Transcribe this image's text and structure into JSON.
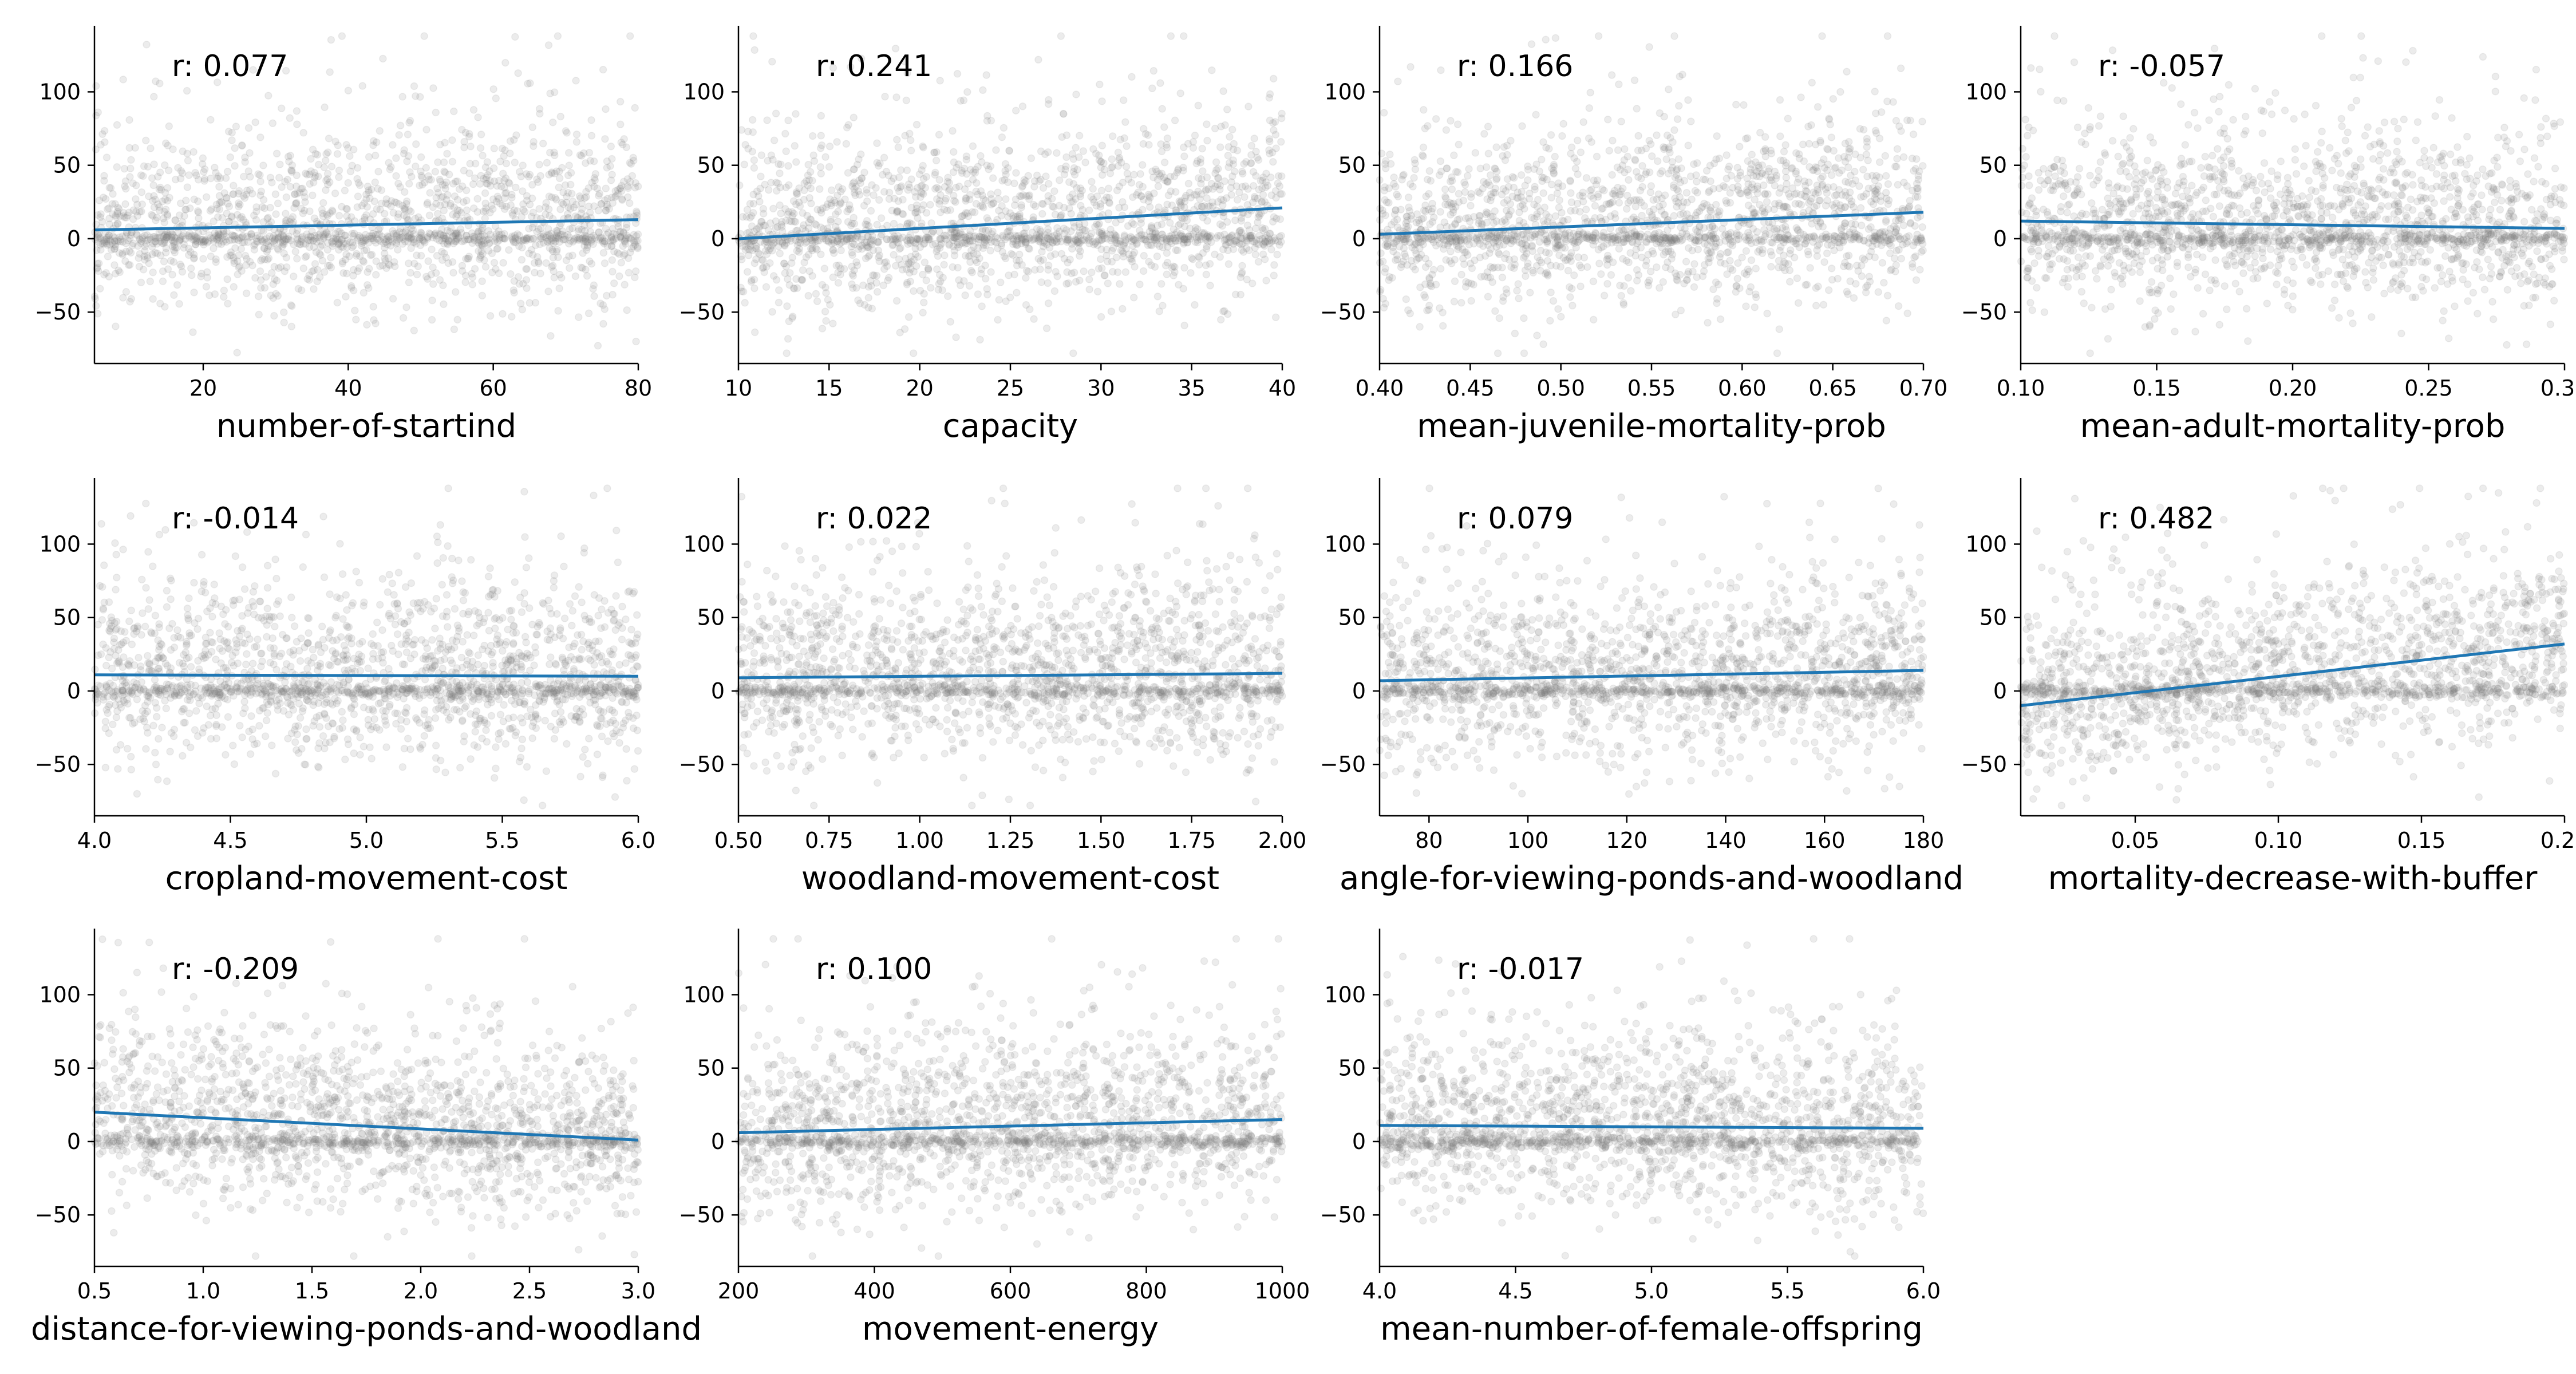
{
  "figure": {
    "colors": {
      "points": "#808080",
      "fit_line": "#1f77b4",
      "axes": "#000000",
      "text": "#000000"
    }
  },
  "chart_data": [
    {
      "type": "scatter",
      "xlabel": "number-of-startind",
      "ylabel": "",
      "r_label": "r:  0.077",
      "xlim": [
        5,
        80
      ],
      "ylim": [
        -85,
        145
      ],
      "xticks": [
        20,
        40,
        60,
        80
      ],
      "xtick_labels": [
        "20",
        "40",
        "60",
        "80"
      ],
      "yticks": [
        -50,
        0,
        50,
        100
      ],
      "ytick_labels": [
        "−50",
        "0",
        "50",
        "100"
      ],
      "fit_line": {
        "x": [
          5,
          80
        ],
        "y": [
          6,
          13
        ]
      },
      "point_cloud": {
        "count": 2000,
        "y_center": 10,
        "y_spread": 28,
        "marker": "circle",
        "alpha": 0.15
      },
      "spines": "left-bottom",
      "grid": false
    },
    {
      "type": "scatter",
      "xlabel": "capacity",
      "ylabel": "",
      "r_label": "r:  0.241",
      "xlim": [
        10,
        40
      ],
      "ylim": [
        -85,
        145
      ],
      "xticks": [
        10,
        15,
        20,
        25,
        30,
        35,
        40
      ],
      "xtick_labels": [
        "10",
        "15",
        "20",
        "25",
        "30",
        "35",
        "40"
      ],
      "yticks": [
        -50,
        0,
        50,
        100
      ],
      "ytick_labels": [
        "−50",
        "0",
        "50",
        "100"
      ],
      "fit_line": {
        "x": [
          10,
          40
        ],
        "y": [
          0,
          21
        ]
      },
      "point_cloud": {
        "count": 2000,
        "y_center": 10,
        "y_spread": 28,
        "marker": "circle",
        "alpha": 0.15
      },
      "spines": "left-bottom",
      "grid": false
    },
    {
      "type": "scatter",
      "xlabel": "mean-juvenile-mortality-prob",
      "ylabel": "",
      "r_label": "r:  0.166",
      "xlim": [
        0.4,
        0.7
      ],
      "ylim": [
        -85,
        145
      ],
      "xticks": [
        0.4,
        0.45,
        0.5,
        0.55,
        0.6,
        0.65,
        0.7
      ],
      "xtick_labels": [
        "0.40",
        "0.45",
        "0.50",
        "0.55",
        "0.60",
        "0.65",
        "0.70"
      ],
      "yticks": [
        -50,
        0,
        50,
        100
      ],
      "ytick_labels": [
        "−50",
        "0",
        "50",
        "100"
      ],
      "fit_line": {
        "x": [
          0.4,
          0.7
        ],
        "y": [
          3,
          18
        ]
      },
      "point_cloud": {
        "count": 2000,
        "y_center": 10,
        "y_spread": 28,
        "marker": "circle",
        "alpha": 0.15
      },
      "spines": "left-bottom",
      "grid": false
    },
    {
      "type": "scatter",
      "xlabel": "mean-adult-mortality-prob",
      "ylabel": "",
      "r_label": "r: -0.057",
      "xlim": [
        0.1,
        0.3
      ],
      "ylim": [
        -85,
        145
      ],
      "xticks": [
        0.1,
        0.15,
        0.2,
        0.25,
        0.3
      ],
      "xtick_labels": [
        "0.10",
        "0.15",
        "0.20",
        "0.25",
        "0.30"
      ],
      "yticks": [
        -50,
        0,
        50,
        100
      ],
      "ytick_labels": [
        "−50",
        "0",
        "50",
        "100"
      ],
      "fit_line": {
        "x": [
          0.1,
          0.3
        ],
        "y": [
          12,
          7
        ]
      },
      "point_cloud": {
        "count": 2000,
        "y_center": 10,
        "y_spread": 28,
        "marker": "circle",
        "alpha": 0.15
      },
      "spines": "left-bottom",
      "grid": false
    },
    {
      "type": "scatter",
      "xlabel": "cropland-movement-cost",
      "ylabel": "",
      "r_label": "r: -0.014",
      "xlim": [
        4,
        6
      ],
      "ylim": [
        -85,
        145
      ],
      "xticks": [
        4,
        4.5,
        5,
        5.5,
        6
      ],
      "xtick_labels": [
        "4.0",
        "4.5",
        "5.0",
        "5.5",
        "6.0"
      ],
      "yticks": [
        -50,
        0,
        50,
        100
      ],
      "ytick_labels": [
        "−50",
        "0",
        "50",
        "100"
      ],
      "fit_line": {
        "x": [
          4,
          6
        ],
        "y": [
          11,
          10
        ]
      },
      "point_cloud": {
        "count": 2000,
        "y_center": 10,
        "y_spread": 28,
        "marker": "circle",
        "alpha": 0.15
      },
      "spines": "left-bottom",
      "grid": false
    },
    {
      "type": "scatter",
      "xlabel": "woodland-movement-cost",
      "ylabel": "",
      "r_label": "r:  0.022",
      "xlim": [
        0.5,
        2
      ],
      "ylim": [
        -85,
        145
      ],
      "xticks": [
        0.5,
        0.75,
        1,
        1.25,
        1.5,
        1.75,
        2
      ],
      "xtick_labels": [
        "0.50",
        "0.75",
        "1.00",
        "1.25",
        "1.50",
        "1.75",
        "2.00"
      ],
      "yticks": [
        -50,
        0,
        50,
        100
      ],
      "ytick_labels": [
        "−50",
        "0",
        "50",
        "100"
      ],
      "fit_line": {
        "x": [
          0.5,
          2
        ],
        "y": [
          9,
          12
        ]
      },
      "point_cloud": {
        "count": 2000,
        "y_center": 10,
        "y_spread": 28,
        "marker": "circle",
        "alpha": 0.15
      },
      "spines": "left-bottom",
      "grid": false
    },
    {
      "type": "scatter",
      "xlabel": "angle-for-viewing-ponds-and-woodland",
      "ylabel": "",
      "r_label": "r:  0.079",
      "xlim": [
        70,
        180
      ],
      "ylim": [
        -85,
        145
      ],
      "xticks": [
        80,
        100,
        120,
        140,
        160,
        180
      ],
      "xtick_labels": [
        "80",
        "100",
        "120",
        "140",
        "160",
        "180"
      ],
      "yticks": [
        -50,
        0,
        50,
        100
      ],
      "ytick_labels": [
        "−50",
        "0",
        "50",
        "100"
      ],
      "fit_line": {
        "x": [
          70,
          180
        ],
        "y": [
          7,
          14
        ]
      },
      "point_cloud": {
        "count": 2000,
        "y_center": 10,
        "y_spread": 28,
        "marker": "circle",
        "alpha": 0.15
      },
      "spines": "left-bottom",
      "grid": false
    },
    {
      "type": "scatter",
      "xlabel": "mortality-decrease-with-buffer",
      "ylabel": "",
      "r_label": "r:  0.482",
      "xlim": [
        0.01,
        0.2
      ],
      "ylim": [
        -85,
        145
      ],
      "xticks": [
        0.05,
        0.1,
        0.15,
        0.2
      ],
      "xtick_labels": [
        "0.05",
        "0.10",
        "0.15",
        "0.20"
      ],
      "yticks": [
        -50,
        0,
        50,
        100
      ],
      "ytick_labels": [
        "−50",
        "0",
        "50",
        "100"
      ],
      "fit_line": {
        "x": [
          0.01,
          0.2
        ],
        "y": [
          -10,
          32
        ]
      },
      "point_cloud": {
        "count": 2000,
        "y_center": 10,
        "y_spread": 28,
        "marker": "circle",
        "alpha": 0.15
      },
      "spines": "left-bottom",
      "grid": false
    },
    {
      "type": "scatter",
      "xlabel": "distance-for-viewing-ponds-and-woodland",
      "ylabel": "",
      "r_label": "r: -0.209",
      "xlim": [
        0.5,
        3
      ],
      "ylim": [
        -85,
        145
      ],
      "xticks": [
        0.5,
        1,
        1.5,
        2,
        2.5,
        3
      ],
      "xtick_labels": [
        "0.5",
        "1.0",
        "1.5",
        "2.0",
        "2.5",
        "3.0"
      ],
      "yticks": [
        -50,
        0,
        50,
        100
      ],
      "ytick_labels": [
        "−50",
        "0",
        "50",
        "100"
      ],
      "fit_line": {
        "x": [
          0.5,
          3
        ],
        "y": [
          20,
          1
        ]
      },
      "point_cloud": {
        "count": 2000,
        "y_center": 10,
        "y_spread": 28,
        "marker": "circle",
        "alpha": 0.15
      },
      "spines": "left-bottom",
      "grid": false
    },
    {
      "type": "scatter",
      "xlabel": "movement-energy",
      "ylabel": "",
      "r_label": "r:  0.100",
      "xlim": [
        200,
        1000
      ],
      "ylim": [
        -85,
        145
      ],
      "xticks": [
        200,
        400,
        600,
        800,
        1000
      ],
      "xtick_labels": [
        "200",
        "400",
        "600",
        "800",
        "1000"
      ],
      "yticks": [
        -50,
        0,
        50,
        100
      ],
      "ytick_labels": [
        "−50",
        "0",
        "50",
        "100"
      ],
      "fit_line": {
        "x": [
          200,
          1000
        ],
        "y": [
          6,
          15
        ]
      },
      "point_cloud": {
        "count": 2000,
        "y_center": 10,
        "y_spread": 28,
        "marker": "circle",
        "alpha": 0.15
      },
      "spines": "left-bottom",
      "grid": false
    },
    {
      "type": "scatter",
      "xlabel": "mean-number-of-female-offspring",
      "ylabel": "",
      "r_label": "r: -0.017",
      "xlim": [
        4,
        6
      ],
      "ylim": [
        -85,
        145
      ],
      "xticks": [
        4,
        4.5,
        5,
        5.5,
        6
      ],
      "xtick_labels": [
        "4.0",
        "4.5",
        "5.0",
        "5.5",
        "6.0"
      ],
      "yticks": [
        -50,
        0,
        50,
        100
      ],
      "ytick_labels": [
        "−50",
        "0",
        "50",
        "100"
      ],
      "fit_line": {
        "x": [
          4,
          6
        ],
        "y": [
          11,
          9
        ]
      },
      "point_cloud": {
        "count": 2000,
        "y_center": 10,
        "y_spread": 28,
        "marker": "circle",
        "alpha": 0.15
      },
      "spines": "left-bottom",
      "grid": false
    }
  ]
}
